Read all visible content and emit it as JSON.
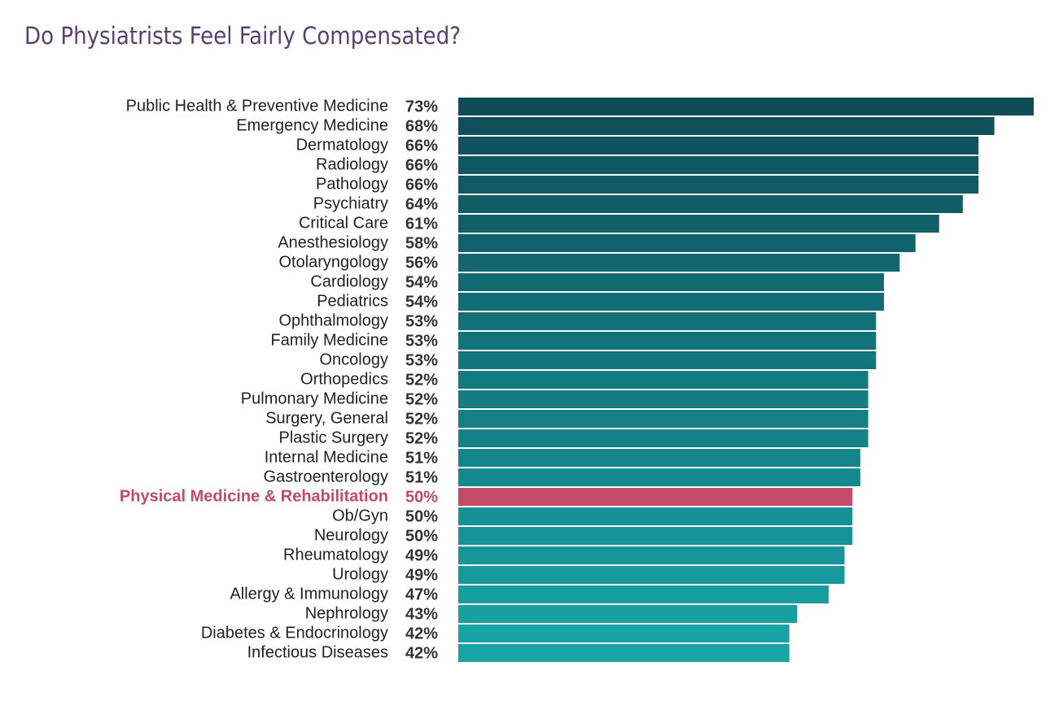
{
  "chart_data": {
    "type": "hbar",
    "title": "Do Physiatrists Feel Fairly Compensated?",
    "categories": [
      "Public Health & Preventive Medicine",
      "Emergency Medicine",
      "Dermatology",
      "Radiology",
      "Pathology",
      "Psychiatry",
      "Critical Care",
      "Anesthesiology",
      "Otolaryngology",
      "Cardiology",
      "Pediatrics",
      "Ophthalmology",
      "Family Medicine",
      "Oncology",
      "Orthopedics",
      "Pulmonary Medicine",
      "Surgery, General",
      "Plastic Surgery",
      "Internal Medicine",
      "Gastroenterology",
      "Physical Medicine & Rehabilitation",
      "Ob/Gyn",
      "Neurology",
      "Rheumatology",
      "Urology",
      "Allergy & Immunology",
      "Nephrology",
      "Diabetes & Endocrinology",
      "Infectious Diseases"
    ],
    "values": [
      73,
      68,
      66,
      66,
      66,
      64,
      61,
      58,
      56,
      54,
      54,
      53,
      53,
      53,
      52,
      52,
      52,
      52,
      51,
      51,
      50,
      50,
      50,
      49,
      49,
      47,
      43,
      42,
      42
    ],
    "value_labels": [
      "73%",
      "68%",
      "66%",
      "66%",
      "66%",
      "64%",
      "61%",
      "58%",
      "56%",
      "54%",
      "54%",
      "53%",
      "53%",
      "53%",
      "52%",
      "52%",
      "52%",
      "52%",
      "51%",
      "51%",
      "50%",
      "50%",
      "50%",
      "49%",
      "49%",
      "47%",
      "43%",
      "42%",
      "42%"
    ],
    "colors": [
      "#0e4d58",
      "#0e505b",
      "#0f535e",
      "#0f5761",
      "#0f5a63",
      "#105d66",
      "#106069",
      "#10636c",
      "#11666f",
      "#116a72",
      "#116d75",
      "#127077",
      "#12737a",
      "#12767d",
      "#127a80",
      "#137d83",
      "#138086",
      "#138389",
      "#14868b",
      "#14898e",
      "#c44b67",
      "#159094",
      "#159397",
      "#15969a",
      "#16999d",
      "#169da0",
      "#16a0a2",
      "#17a3a5",
      "#17a6a8"
    ],
    "highlight_color": "#c44b67"
  }
}
